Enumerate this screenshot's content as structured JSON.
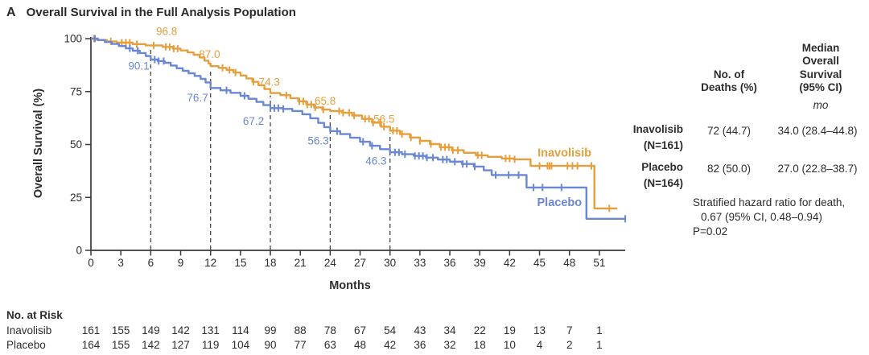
{
  "figure": {
    "panel_label": "A",
    "title": "Overall Survival in the Full Analysis Population"
  },
  "colors": {
    "inavolisib": "#E69F3C",
    "placebo": "#6987D2",
    "axis": "#3a3938",
    "text": "#2e2d2c",
    "dashed_line": "#474747"
  },
  "chart_data": {
    "type": "line",
    "subtype": "kaplan-meier-step",
    "title": "Overall Survival in the Full Analysis Population",
    "xlabel": "Months",
    "ylabel": "Overall Survival (%)",
    "xlim": [
      0,
      54
    ],
    "ylim": [
      0,
      100
    ],
    "xticks": [
      0,
      3,
      6,
      9,
      12,
      15,
      18,
      21,
      24,
      27,
      30,
      33,
      36,
      39,
      42,
      45,
      48,
      51
    ],
    "yticks": [
      0,
      25,
      50,
      75,
      100
    ],
    "grid": false,
    "dashed_guide_months": [
      6,
      12,
      18,
      24,
      30
    ],
    "series": [
      {
        "name": "Inavolisib",
        "color_key": "inavolisib",
        "label_anchor": {
          "month": 47.5,
          "pct": 46.2
        },
        "annotations": [
          {
            "text": "96.8",
            "month": 7.6,
            "pct": 103.5
          },
          {
            "text": "87.0",
            "month": 11.9,
            "pct": 92.5
          },
          {
            "text": "74.3",
            "month": 17.9,
            "pct": 79.5
          },
          {
            "text": "65.8",
            "month": 23.5,
            "pct": 70.5
          },
          {
            "text": "56.5",
            "month": 29.4,
            "pct": 62.0
          }
        ],
        "steps": [
          [
            0,
            100
          ],
          [
            0.6,
            99.4
          ],
          [
            1.6,
            98.7
          ],
          [
            2.6,
            98.1
          ],
          [
            4.2,
            97.4
          ],
          [
            5.5,
            96.8
          ],
          [
            7.2,
            96.1
          ],
          [
            8.2,
            95.3
          ],
          [
            9.0,
            94.4
          ],
          [
            9.7,
            93.5
          ],
          [
            10.3,
            92.4
          ],
          [
            10.9,
            91.1
          ],
          [
            11.4,
            89.6
          ],
          [
            11.8,
            88.2
          ],
          [
            12,
            87.0
          ],
          [
            12.8,
            86.2
          ],
          [
            13.6,
            85.2
          ],
          [
            14.3,
            84.0
          ],
          [
            15,
            82.6
          ],
          [
            15.6,
            81.2
          ],
          [
            16.2,
            79.6
          ],
          [
            16.8,
            78.0
          ],
          [
            17.4,
            76.2
          ],
          [
            18,
            74.3
          ],
          [
            19,
            73.3
          ],
          [
            20,
            71.9
          ],
          [
            20.8,
            70.4
          ],
          [
            21.6,
            68.9
          ],
          [
            22.4,
            67.5
          ],
          [
            23.2,
            66.5
          ],
          [
            24,
            65.8
          ],
          [
            25.2,
            65.0
          ],
          [
            26.2,
            63.7
          ],
          [
            27.2,
            62.1
          ],
          [
            28.2,
            60.3
          ],
          [
            29.1,
            58.4
          ],
          [
            30,
            56.5
          ],
          [
            31,
            54.9
          ],
          [
            32,
            53.3
          ],
          [
            33,
            51.7
          ],
          [
            34,
            50.2
          ],
          [
            35,
            48.7
          ],
          [
            36.2,
            47.3
          ],
          [
            37.4,
            46.1
          ],
          [
            38.6,
            44.9
          ],
          [
            39.8,
            44.2
          ],
          [
            41.2,
            43.4
          ],
          [
            42.4,
            43.0
          ],
          [
            44.1,
            39.9
          ],
          [
            50.5,
            19.8
          ],
          [
            52.8,
            19.8
          ]
        ],
        "censor_months": [
          0.3,
          2.0,
          3.1,
          3.5,
          3.9,
          4.6,
          6.3,
          7.5,
          7.9,
          8.3,
          8.7,
          13.2,
          13.9,
          14.5,
          16.3,
          19.6,
          20.9,
          21.3,
          21.7,
          22.1,
          22.5,
          23.3,
          24.9,
          25.3,
          25.9,
          26.4,
          27.5,
          27.9,
          28.3,
          29.0,
          29.4,
          30.3,
          30.7,
          31.2,
          32.1,
          33.0,
          34.1,
          35.1,
          35.5,
          35.9,
          36.3,
          36.8,
          38.8,
          39.2,
          41.6,
          42.0,
          42.5,
          45.0,
          45.8,
          46.0,
          46.2,
          47.8,
          48.3,
          48.8,
          50.2,
          52.0
        ]
      },
      {
        "name": "Placebo",
        "color_key": "placebo",
        "label_anchor": {
          "month": 47.0,
          "pct": 22.8
        },
        "annotations": [
          {
            "text": "90.1",
            "month": 4.8,
            "pct": 87.0
          },
          {
            "text": "76.7",
            "month": 10.7,
            "pct": 72.0
          },
          {
            "text": "67.2",
            "month": 16.3,
            "pct": 61.0
          },
          {
            "text": "56.3",
            "month": 22.8,
            "pct": 51.8
          },
          {
            "text": "46.3",
            "month": 28.6,
            "pct": 42.2
          }
        ],
        "steps": [
          [
            0,
            100
          ],
          [
            0.7,
            99.3
          ],
          [
            1.4,
            98.4
          ],
          [
            2.1,
            97.5
          ],
          [
            2.8,
            96.5
          ],
          [
            3.5,
            95.4
          ],
          [
            4.2,
            94.3
          ],
          [
            4.9,
            93.2
          ],
          [
            5.5,
            91.8
          ],
          [
            6,
            90.1
          ],
          [
            6.7,
            89.4
          ],
          [
            7.4,
            88.6
          ],
          [
            8,
            87.3
          ],
          [
            8.6,
            86.0
          ],
          [
            9.2,
            84.8
          ],
          [
            9.8,
            83.6
          ],
          [
            10.4,
            82.4
          ],
          [
            11,
            81.0
          ],
          [
            11.5,
            79.3
          ],
          [
            12,
            76.7
          ],
          [
            13,
            75.6
          ],
          [
            14,
            74.4
          ],
          [
            15,
            73.0
          ],
          [
            15.8,
            71.6
          ],
          [
            16.6,
            70.1
          ],
          [
            17.3,
            68.6
          ],
          [
            18,
            67.2
          ],
          [
            19.2,
            66.8
          ],
          [
            20.2,
            65.8
          ],
          [
            21.2,
            64.3
          ],
          [
            22,
            62.4
          ],
          [
            22.8,
            60.2
          ],
          [
            23.4,
            58.2
          ],
          [
            24,
            56.3
          ],
          [
            25,
            54.9
          ],
          [
            26,
            53.2
          ],
          [
            27,
            51.3
          ],
          [
            28,
            49.4
          ],
          [
            29,
            47.8
          ],
          [
            30,
            46.3
          ],
          [
            31.2,
            45.4
          ],
          [
            32.4,
            44.6
          ],
          [
            33.6,
            43.8
          ],
          [
            34.8,
            42.9
          ],
          [
            36,
            41.9
          ],
          [
            37.2,
            40.8
          ],
          [
            38.4,
            39.6
          ],
          [
            39.4,
            37.8
          ],
          [
            40.2,
            35.6
          ],
          [
            43.7,
            29.7
          ],
          [
            49.7,
            14.9
          ],
          [
            53.6,
            14.9
          ]
        ],
        "censor_months": [
          0.4,
          3.9,
          4.7,
          6.4,
          6.8,
          7.3,
          13.6,
          15.4,
          18.4,
          18.8,
          19.3,
          24.7,
          27.3,
          28.2,
          30.5,
          30.9,
          31.5,
          32.5,
          32.9,
          33.3,
          33.7,
          34.3,
          35.3,
          35.7,
          36.5,
          37.3,
          37.7,
          38.5,
          40.6,
          41.9,
          42.9,
          44.4,
          45.3,
          47.2,
          53.6
        ]
      }
    ]
  },
  "risk_table": {
    "heading": "No. at Risk",
    "months": [
      0,
      3,
      6,
      9,
      12,
      15,
      18,
      21,
      24,
      27,
      30,
      33,
      36,
      39,
      42,
      45,
      48,
      51
    ],
    "rows": [
      {
        "label": "Inavolisib",
        "values": [
          "161",
          "155",
          "149",
          "142",
          "131",
          "114",
          "99",
          "88",
          "78",
          "67",
          "54",
          "43",
          "34",
          "22",
          "19",
          "13",
          "7",
          "1"
        ]
      },
      {
        "label": "Placebo",
        "values": [
          "164",
          "155",
          "142",
          "127",
          "119",
          "104",
          "90",
          "77",
          "63",
          "48",
          "42",
          "36",
          "32",
          "18",
          "10",
          "4",
          "2",
          "1"
        ]
      }
    ]
  },
  "stats_panel": {
    "col_deaths_header": "No. of\nDeaths (%)",
    "col_median_header": "Median\nOverall\nSurvival\n(95% CI)",
    "unit_label": "mo",
    "rows": [
      {
        "name": "Inavolisib",
        "n": "(N=161)",
        "deaths": "72 (44.7)",
        "median": "34.0 (28.4–44.8)"
      },
      {
        "name": "Placebo",
        "n": "(N=164)",
        "deaths": "82 (50.0)",
        "median": "27.0 (22.8–38.7)"
      }
    ],
    "hazard_lines": [
      "Stratified hazard ratio for death,",
      "0.67 (95% CI, 0.48–0.94)",
      "P=0.02"
    ]
  }
}
